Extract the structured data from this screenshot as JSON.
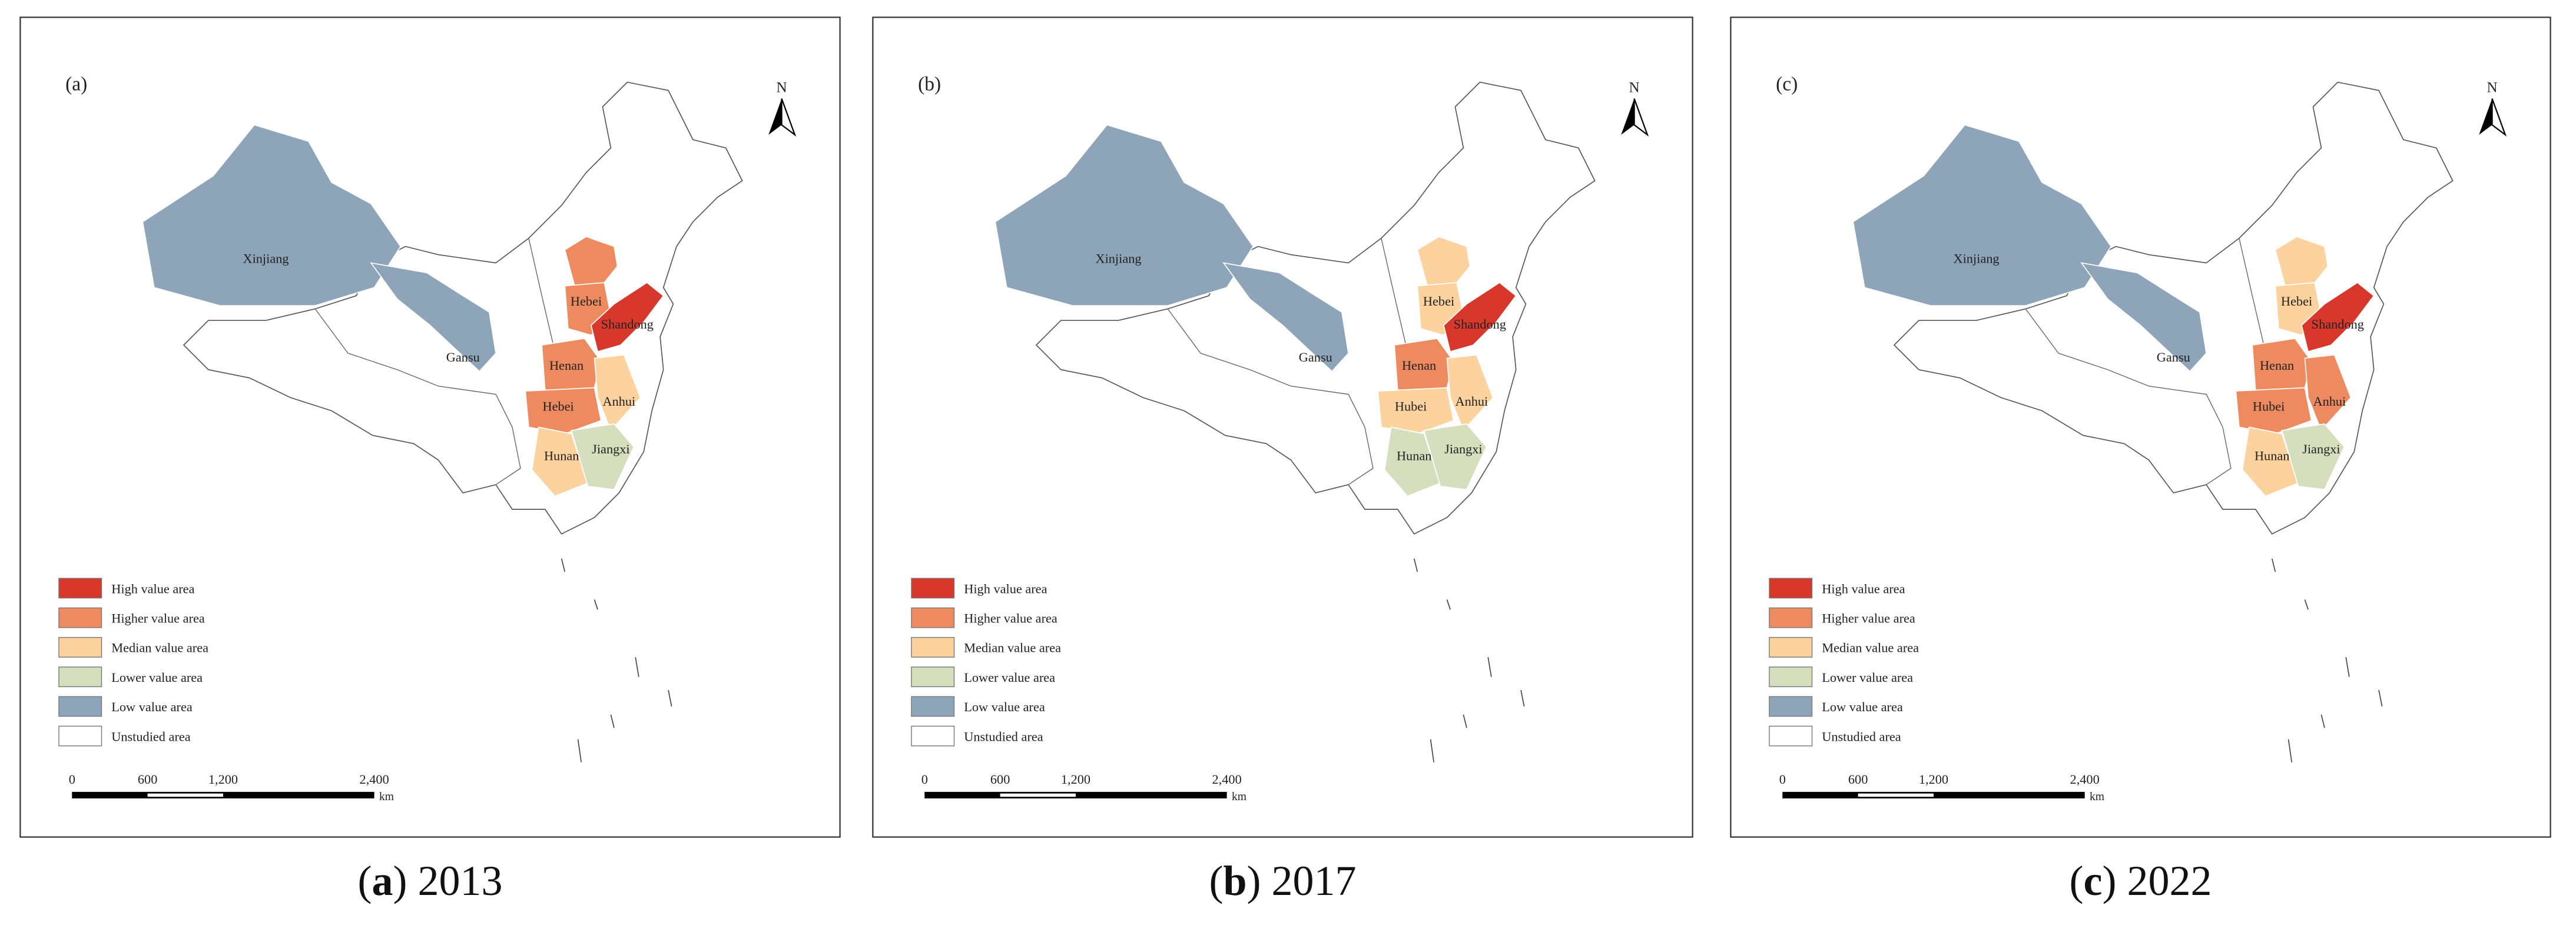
{
  "north": "N",
  "legend": [
    {
      "name": "High value area",
      "color": "#d8372c"
    },
    {
      "name": "Higher value area",
      "color": "#ee8a5f"
    },
    {
      "name": "Median value area",
      "color": "#fcd39e"
    },
    {
      "name": "Lower value area",
      "color": "#d6dfbd"
    },
    {
      "name": "Low value area",
      "color": "#8ea4b9"
    },
    {
      "name": "Unstudied area",
      "color": "#ffffff"
    }
  ],
  "scale_bar": {
    "ticks": [
      "0",
      "600",
      "1,200",
      "2,400"
    ],
    "unit": "km"
  },
  "panels": [
    {
      "tag": "(a)",
      "caption": {
        "open": "(",
        "label": "a",
        "close": ")",
        "year": "2013"
      },
      "regions": [
        {
          "name": "Xinjiang",
          "level": "Low value area"
        },
        {
          "name": "Gansu",
          "level": "Low value area"
        },
        {
          "name": null,
          "level": "Higher value area"
        },
        {
          "name": "Hebei",
          "level": "Higher value area"
        },
        {
          "name": "Shandong",
          "level": "High value area"
        },
        {
          "name": "Henan",
          "level": "Higher value area"
        },
        {
          "name": "Hebei",
          "level": "Higher value area"
        },
        {
          "name": "Anhui",
          "level": "Median value area"
        },
        {
          "name": "Hunan",
          "level": "Median value area"
        },
        {
          "name": "Jiangxi",
          "level": "Lower value area"
        }
      ]
    },
    {
      "tag": "(b)",
      "caption": {
        "open": "(",
        "label": "b",
        "close": ")",
        "year": "2017"
      },
      "regions": [
        {
          "name": "Xinjiang",
          "level": "Low value area"
        },
        {
          "name": "Gansu",
          "level": "Low value area"
        },
        {
          "name": null,
          "level": "Median value area"
        },
        {
          "name": "Hebei",
          "level": "Median value area"
        },
        {
          "name": "Shandong",
          "level": "High value area"
        },
        {
          "name": "Henan",
          "level": "Higher value area"
        },
        {
          "name": "Hubei",
          "level": "Median value area"
        },
        {
          "name": "Anhui",
          "level": "Median value area"
        },
        {
          "name": "Hunan",
          "level": "Lower value area"
        },
        {
          "name": "Jiangxi",
          "level": "Lower value area"
        }
      ]
    },
    {
      "tag": "(c)",
      "caption": {
        "open": "(",
        "label": "c",
        "close": ")",
        "year": "2022"
      },
      "regions": [
        {
          "name": "Xinjiang",
          "level": "Low value area"
        },
        {
          "name": "Gansu",
          "level": "Low value area"
        },
        {
          "name": null,
          "level": "Median value area"
        },
        {
          "name": "Hebei",
          "level": "Median value area"
        },
        {
          "name": "Shandong",
          "level": "High value area"
        },
        {
          "name": "Henan",
          "level": "Higher value area"
        },
        {
          "name": "Hubei",
          "level": "Higher value area"
        },
        {
          "name": "Anhui",
          "level": "Higher value area"
        },
        {
          "name": "Hunan",
          "level": "Median value area"
        },
        {
          "name": "Jiangxi",
          "level": "Lower value area"
        }
      ]
    }
  ]
}
